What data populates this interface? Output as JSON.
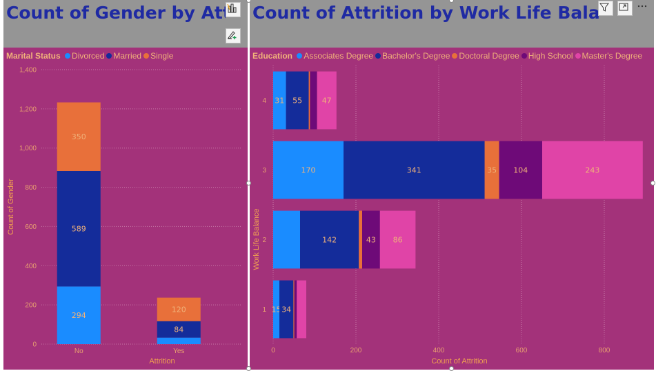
{
  "colors": {
    "panel_bg": "#a3327a",
    "title_bg": "#959595",
    "title_text": "#1f2aa3",
    "axis_text": "#e8a070",
    "divorced": "#1a8cff",
    "married": "#142c9a",
    "single": "#e8703a",
    "associates": "#1a8cff",
    "bachelors": "#142c9a",
    "doctoral": "#e8703a",
    "high_school": "#6e0a78",
    "masters": "#e044a7"
  },
  "left": {
    "title": "Count of Gender by Attrition and Marital Status",
    "legend_title": "Marital Status"
  },
  "right": {
    "title": "Count of Attrition by Work Life Balance and Education",
    "legend_title": "Education"
  },
  "chart_data": [
    {
      "type": "bar",
      "orientation": "vertical",
      "stacked": true,
      "title": "Count of Gender by Attrition and Marital Status",
      "xlabel": "Attrition",
      "ylabel": "Count of Gender",
      "categories": [
        "No",
        "Yes"
      ],
      "series": [
        {
          "name": "Divorced",
          "values": [
            294,
            33
          ]
        },
        {
          "name": "Married",
          "values": [
            589,
            84
          ]
        },
        {
          "name": "Single",
          "values": [
            350,
            120
          ]
        }
      ],
      "labels_shown": [
        [
          true,
          false
        ],
        [
          true,
          true
        ],
        [
          true,
          true
        ]
      ],
      "ylim": [
        0,
        1400
      ],
      "yticks": [
        "0",
        "200",
        "400",
        "600",
        "800",
        "1,000",
        "1,200",
        "1,400"
      ],
      "legend_title": "Marital Status",
      "legend_position": "top-left",
      "grid": true
    },
    {
      "type": "bar",
      "orientation": "horizontal",
      "stacked": true,
      "title": "Count of Attrition by Work Life Balance and Education",
      "xlabel": "Count of Attrition",
      "ylabel": "Work Life Balance",
      "categories": [
        "4",
        "3",
        "2",
        "1"
      ],
      "series": [
        {
          "name": "Associates Degree",
          "values": [
            31,
            170,
            65,
            15
          ]
        },
        {
          "name": "Bachelor's Degree",
          "values": [
            55,
            341,
            142,
            34
          ]
        },
        {
          "name": "Doctoral Degree",
          "values": [
            3,
            35,
            8,
            2
          ]
        },
        {
          "name": "High School",
          "values": [
            17,
            104,
            43,
            6
          ]
        },
        {
          "name": "Master's Degree",
          "values": [
            47,
            243,
            86,
            23
          ]
        }
      ],
      "labels_shown": [
        [
          true,
          true,
          false,
          true
        ],
        [
          true,
          true,
          true,
          true
        ],
        [
          false,
          true,
          false,
          false
        ],
        [
          false,
          true,
          true,
          false
        ],
        [
          true,
          true,
          true,
          false
        ]
      ],
      "xlim": [
        0,
        900
      ],
      "xticks": [
        "0",
        "200",
        "400",
        "600",
        "800"
      ],
      "legend_title": "Education",
      "legend_position": "top-left",
      "grid": true
    }
  ]
}
